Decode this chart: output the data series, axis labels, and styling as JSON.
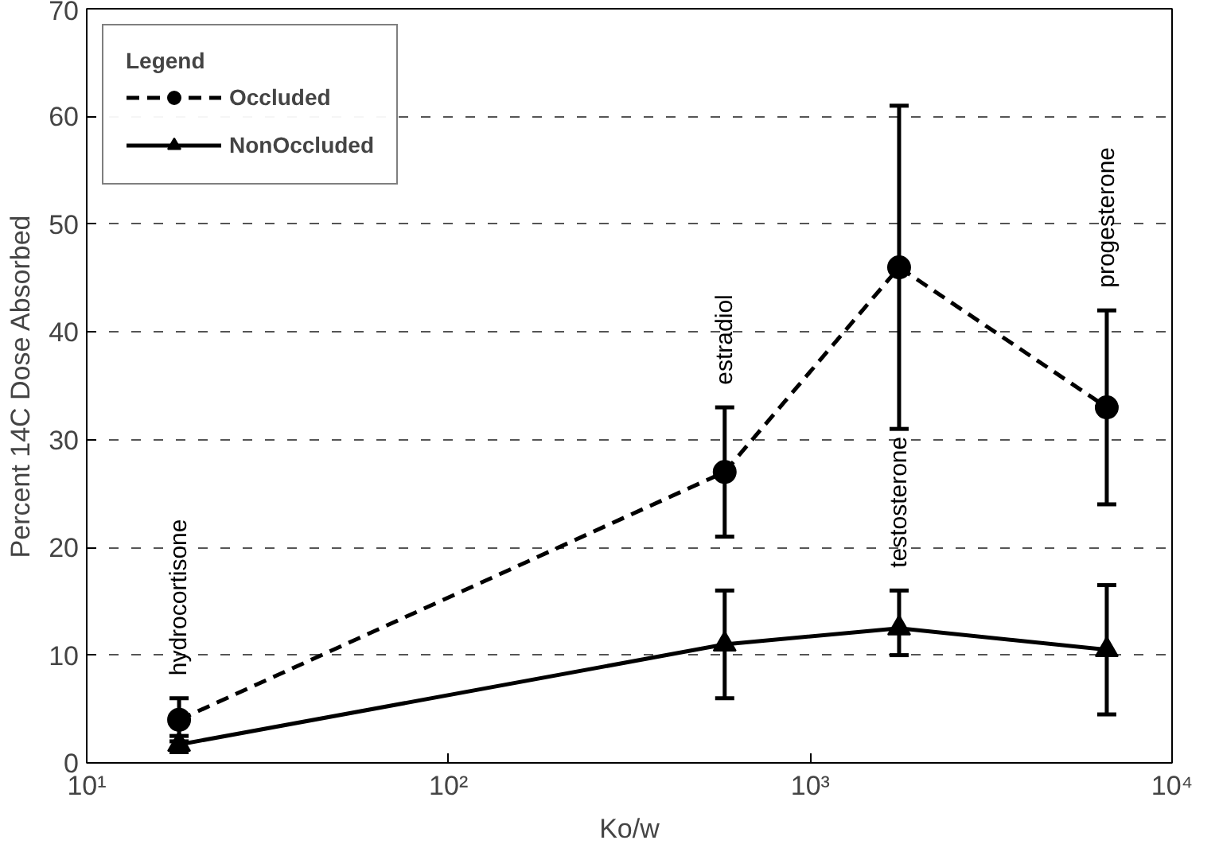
{
  "chart_data": {
    "type": "line",
    "xlabel": "Ko/w",
    "ylabel": "Percent 14C Dose Absorbed",
    "legend_title": "Legend",
    "log": "x",
    "xlim": [
      10,
      10000
    ],
    "xticks": [
      {
        "value": 10,
        "label": "10¹"
      },
      {
        "value": 100,
        "label": "10²"
      },
      {
        "value": 1000,
        "label": "10³"
      },
      {
        "value": 10000,
        "label": "10⁴"
      }
    ],
    "ylim": [
      0,
      70
    ],
    "yticks": [
      0,
      10,
      20,
      30,
      40,
      50,
      60,
      70
    ],
    "grid": "y",
    "legend": "top left",
    "x": [
      18,
      580,
      1760,
      6600
    ],
    "series": [
      {
        "name": "Occluded",
        "color": "#000000",
        "marker": "circle",
        "line_style": "dashed",
        "values": [
          4,
          27,
          46,
          33
        ],
        "errors": [
          [
            2,
            6
          ],
          [
            21,
            33
          ],
          [
            31,
            61
          ],
          [
            24,
            42
          ]
        ]
      },
      {
        "name": "NonOccluded",
        "color": "#000000",
        "marker": "triangle",
        "line_style": "solid",
        "values": [
          1.7,
          11,
          12.5,
          10.5
        ],
        "errors": [
          [
            1,
            2.5
          ],
          [
            6,
            16
          ],
          [
            10,
            16
          ],
          [
            4.5,
            16.5
          ]
        ]
      }
    ],
    "annotations": [
      "hydrocortisone",
      "estradiol",
      "testosterone",
      "progesterone"
    ]
  }
}
